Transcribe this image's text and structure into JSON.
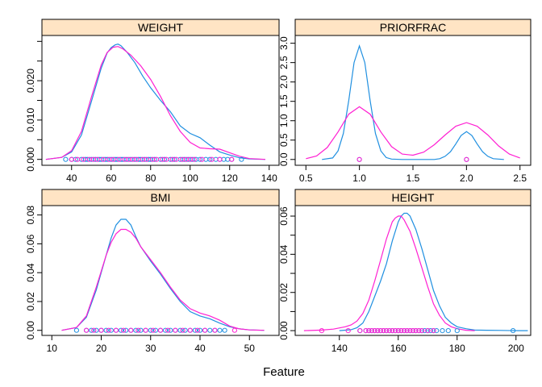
{
  "xlabel": "Feature",
  "colors": {
    "a": "#1f8fe0",
    "b": "#ff1fd2",
    "strip": "#ffe4c4"
  },
  "chart_data": [
    {
      "type": "line",
      "title": "WEIGHT",
      "xlim": [
        25,
        145
      ],
      "ylim": [
        -0.0015,
        0.0315
      ],
      "xticks": [
        40,
        60,
        80,
        100,
        120,
        140
      ],
      "xtick_labels": [
        "40",
        "60",
        "80",
        "100",
        "120",
        "140"
      ],
      "yticks": [
        0,
        0.005,
        0.01,
        0.015,
        0.02,
        0.025,
        0.03
      ],
      "ytick_labels": [
        "0.000",
        "",
        "0.010",
        "",
        "0.020",
        "",
        ""
      ],
      "series": [
        {
          "key": "a",
          "x": [
            27,
            35,
            40,
            45,
            50,
            55,
            58,
            60,
            62,
            63.5,
            65,
            68,
            72,
            76,
            80,
            85,
            90,
            95,
            100,
            105,
            110,
            115,
            120,
            125,
            130,
            138
          ],
          "y": [
            0.0,
            0.0005,
            0.0019,
            0.0062,
            0.0147,
            0.0232,
            0.0271,
            0.0284,
            0.0291,
            0.0293,
            0.0289,
            0.0273,
            0.0246,
            0.0212,
            0.0182,
            0.015,
            0.0121,
            0.0085,
            0.0066,
            0.0055,
            0.0036,
            0.0019,
            0.0011,
            0.0004,
            0.0001,
            0.0
          ]
        },
        {
          "key": "b",
          "x": [
            27,
            35,
            40,
            45,
            50,
            55,
            58,
            61,
            63.5,
            66,
            70,
            75,
            80,
            85,
            90,
            95,
            100,
            105,
            110,
            115,
            120,
            125,
            130,
            138
          ],
          "y": [
            0.0,
            0.0005,
            0.0022,
            0.0071,
            0.0158,
            0.024,
            0.0272,
            0.0285,
            0.0287,
            0.0281,
            0.0265,
            0.0238,
            0.0203,
            0.016,
            0.0111,
            0.0071,
            0.0043,
            0.0029,
            0.0027,
            0.0026,
            0.0017,
            0.0008,
            0.0002,
            0.0
          ]
        }
      ],
      "rug": {
        "a": [
          37,
          40,
          42,
          45,
          47,
          48,
          50,
          52,
          54,
          55,
          57,
          58,
          60,
          62,
          63,
          65,
          66,
          68,
          70,
          72,
          74,
          75,
          77,
          79,
          80,
          82,
          85,
          87,
          90,
          92,
          95,
          97,
          99,
          101,
          103,
          105,
          108,
          110,
          113,
          115,
          117,
          119,
          121,
          126
        ],
        "b": [
          40,
          43,
          46,
          49,
          51,
          53,
          56,
          59,
          61,
          64,
          67,
          69,
          71,
          73,
          76,
          78,
          81,
          83,
          86,
          88,
          91,
          93,
          96,
          98,
          100,
          102,
          106,
          111,
          115,
          121
        ]
      }
    },
    {
      "type": "line",
      "title": "PRIORFRAC",
      "xlim": [
        0.4,
        2.6
      ],
      "ylim": [
        -0.15,
        3.2
      ],
      "xticks": [
        0.5,
        1.0,
        1.5,
        2.0,
        2.5
      ],
      "xtick_labels": [
        "0.5",
        "1.0",
        "1.5",
        "2.0",
        "2.5"
      ],
      "yticks": [
        0,
        0.5,
        1.0,
        1.5,
        2.0,
        2.5,
        3.0
      ],
      "ytick_labels": [
        "0.0",
        "0.5",
        "1.0",
        "1.5",
        "2.0",
        "2.5",
        "3.0"
      ],
      "series": [
        {
          "key": "a",
          "x": [
            0.65,
            0.75,
            0.8,
            0.85,
            0.9,
            0.95,
            1.0,
            1.05,
            1.1,
            1.15,
            1.2,
            1.25,
            1.3,
            1.4,
            1.5,
            1.6,
            1.7,
            1.75,
            1.8,
            1.85,
            1.9,
            1.95,
            2.0,
            2.05,
            2.1,
            2.15,
            2.2,
            2.25,
            2.35
          ],
          "y": [
            0.0,
            0.04,
            0.22,
            0.67,
            1.52,
            2.5,
            2.93,
            2.5,
            1.52,
            0.67,
            0.22,
            0.05,
            0.01,
            0.0,
            0.0,
            0.0,
            0.0,
            0.02,
            0.08,
            0.2,
            0.4,
            0.62,
            0.72,
            0.62,
            0.4,
            0.2,
            0.08,
            0.02,
            0.0
          ]
        },
        {
          "key": "b",
          "x": [
            0.5,
            0.6,
            0.7,
            0.8,
            0.9,
            1.0,
            1.1,
            1.2,
            1.3,
            1.4,
            1.5,
            1.6,
            1.7,
            1.8,
            1.9,
            2.0,
            2.1,
            2.2,
            2.3,
            2.4,
            2.5
          ],
          "y": [
            0.02,
            0.09,
            0.31,
            0.71,
            1.17,
            1.36,
            1.17,
            0.71,
            0.33,
            0.14,
            0.11,
            0.19,
            0.38,
            0.63,
            0.86,
            0.95,
            0.86,
            0.63,
            0.35,
            0.14,
            0.04
          ]
        }
      ],
      "rug": {
        "a": [
          1.0,
          2.0
        ],
        "b": [
          1.0,
          2.0
        ]
      }
    },
    {
      "type": "line",
      "title": "BMI",
      "xlim": [
        8,
        56
      ],
      "ylim": [
        -0.0035,
        0.0865
      ],
      "xticks": [
        10,
        20,
        30,
        40,
        50
      ],
      "xtick_labels": [
        "10",
        "20",
        "30",
        "40",
        "50"
      ],
      "yticks": [
        0,
        0.02,
        0.04,
        0.06,
        0.08
      ],
      "ytick_labels": [
        "0.00",
        "0.02",
        "0.04",
        "0.06",
        "0.08"
      ],
      "series": [
        {
          "key": "a",
          "x": [
            12,
            15,
            17,
            19,
            21,
            22,
            23,
            24,
            25,
            26,
            27,
            28,
            30,
            32,
            34,
            36,
            38,
            40,
            42,
            44,
            46,
            48,
            50,
            53
          ],
          "y": [
            0.0,
            0.002,
            0.009,
            0.028,
            0.052,
            0.064,
            0.073,
            0.077,
            0.077,
            0.073,
            0.065,
            0.058,
            0.048,
            0.039,
            0.029,
            0.02,
            0.013,
            0.01,
            0.008,
            0.005,
            0.0025,
            0.001,
            0.0003,
            0.0
          ]
        },
        {
          "key": "b",
          "x": [
            12,
            15,
            17,
            19,
            21,
            22,
            23,
            24,
            25,
            26,
            27,
            28,
            30,
            32,
            34,
            36,
            38,
            40,
            42,
            44,
            46,
            48,
            50,
            53
          ],
          "y": [
            0.0,
            0.002,
            0.01,
            0.03,
            0.052,
            0.061,
            0.067,
            0.07,
            0.07,
            0.068,
            0.064,
            0.058,
            0.049,
            0.04,
            0.03,
            0.021,
            0.015,
            0.012,
            0.01,
            0.007,
            0.003,
            0.001,
            0.0003,
            0.0
          ]
        }
      ],
      "rug": {
        "a": [
          15,
          17,
          18,
          19,
          20,
          21,
          22,
          23,
          24,
          25,
          26,
          27,
          28,
          29,
          30,
          31,
          32,
          33,
          34,
          35,
          36,
          37,
          38,
          39,
          40,
          41,
          42,
          43,
          44,
          45
        ],
        "b": [
          17,
          18.5,
          20,
          21.5,
          23,
          24.5,
          26,
          27.5,
          29,
          30.5,
          32,
          33.5,
          35,
          36.5,
          38,
          39.5,
          41,
          43,
          47
        ]
      }
    },
    {
      "type": "line",
      "title": "HEIGHT",
      "xlim": [
        125,
        205
      ],
      "ylim": [
        -0.0025,
        0.0655
      ],
      "xticks": [
        140,
        160,
        180,
        200
      ],
      "xtick_labels": [
        "140",
        "160",
        "180",
        "200"
      ],
      "yticks": [
        0,
        0.01,
        0.02,
        0.03,
        0.04,
        0.05,
        0.06
      ],
      "ytick_labels": [
        "0.00",
        "",
        "0.02",
        "",
        "0.04",
        "",
        "0.06"
      ],
      "series": [
        {
          "key": "a",
          "x": [
            140,
            144,
            146,
            148,
            150,
            152,
            154,
            156,
            158,
            160,
            161,
            162,
            163,
            164,
            166,
            168,
            170,
            172,
            174,
            176,
            178,
            180,
            183,
            186,
            190,
            195,
            200,
            204
          ],
          "y": [
            0.0,
            0.0005,
            0.0015,
            0.004,
            0.01,
            0.018,
            0.026,
            0.035,
            0.047,
            0.057,
            0.06,
            0.0615,
            0.0615,
            0.06,
            0.053,
            0.043,
            0.032,
            0.021,
            0.013,
            0.007,
            0.004,
            0.002,
            0.001,
            0.0003,
            0.0002,
            0.0001,
            0.0,
            0.0
          ]
        },
        {
          "key": "b",
          "x": [
            128,
            134,
            138,
            142,
            144,
            146,
            148,
            150,
            152,
            154,
            156,
            158,
            159,
            160,
            161,
            162,
            164,
            166,
            168,
            170,
            172,
            174,
            176,
            178,
            180,
            183,
            186
          ],
          "y": [
            0.0,
            0.0003,
            0.0008,
            0.002,
            0.003,
            0.005,
            0.009,
            0.016,
            0.026,
            0.037,
            0.048,
            0.057,
            0.059,
            0.06,
            0.06,
            0.058,
            0.052,
            0.043,
            0.033,
            0.023,
            0.014,
            0.008,
            0.004,
            0.002,
            0.001,
            0.0002,
            0.0
          ]
        }
      ],
      "rug": {
        "a": [
          147,
          149,
          150,
          151,
          152,
          153,
          154,
          155,
          156,
          157,
          158,
          159,
          160,
          161,
          162,
          163,
          164,
          165,
          166,
          167,
          168,
          169,
          170,
          171,
          172,
          173,
          175,
          177,
          180,
          199
        ],
        "b": [
          134,
          143,
          147,
          149,
          150,
          151,
          152,
          153,
          154,
          155,
          156,
          157,
          158,
          159,
          160,
          161,
          162,
          163,
          164,
          165,
          166,
          167,
          168,
          170,
          172
        ]
      }
    }
  ]
}
